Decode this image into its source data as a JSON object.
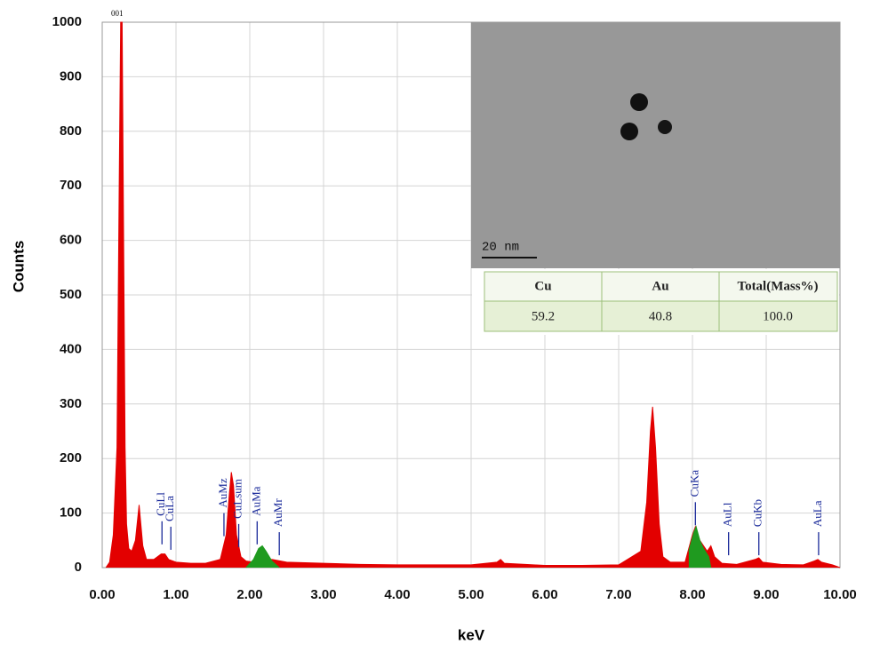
{
  "chart_data": {
    "type": "area",
    "y_label": "Counts",
    "x_label": "keV",
    "annotation": "001",
    "xlim": [
      0,
      10
    ],
    "ylim": [
      0,
      1000
    ],
    "xticks": [
      {
        "value": 0,
        "label": "0.00"
      },
      {
        "value": 1,
        "label": "1.00"
      },
      {
        "value": 2,
        "label": "2.00"
      },
      {
        "value": 3,
        "label": "3.00"
      },
      {
        "value": 4,
        "label": "4.00"
      },
      {
        "value": 5,
        "label": "5.00"
      },
      {
        "value": 6,
        "label": "6.00"
      },
      {
        "value": 7,
        "label": "7.00"
      },
      {
        "value": 8,
        "label": "8.00"
      },
      {
        "value": 9,
        "label": "9.00"
      },
      {
        "value": 10,
        "label": "10.00"
      }
    ],
    "yticks": [
      0,
      100,
      200,
      300,
      400,
      500,
      600,
      700,
      800,
      900,
      1000
    ],
    "grid": true,
    "series": [
      {
        "color": "#e30000",
        "x": [
          0.05,
          0.1,
          0.15,
          0.2,
          0.23,
          0.25,
          0.27,
          0.29,
          0.31,
          0.33,
          0.36,
          0.4,
          0.45,
          0.5,
          0.55,
          0.6,
          0.7,
          0.8,
          0.85,
          0.9,
          1.0,
          1.2,
          1.4,
          1.6,
          1.68,
          1.72,
          1.75,
          1.78,
          1.82,
          1.88,
          1.95,
          2.05,
          2.3,
          2.5,
          3.0,
          3.5,
          4.0,
          4.5,
          5.0,
          5.35,
          5.4,
          5.45,
          6.0,
          6.5,
          7.0,
          7.3,
          7.38,
          7.43,
          7.46,
          7.5,
          7.55,
          7.6,
          7.7,
          7.9,
          8.0,
          8.04,
          8.1,
          8.2,
          8.25,
          8.3,
          8.4,
          8.6,
          8.85,
          8.9,
          8.95,
          9.2,
          9.5,
          9.65,
          9.7,
          9.75,
          9.9,
          10.0
        ],
        "values": [
          0,
          10,
          60,
          220,
          700,
          1000,
          1000,
          600,
          220,
          80,
          35,
          30,
          50,
          115,
          40,
          15,
          15,
          25,
          25,
          15,
          10,
          8,
          8,
          15,
          60,
          130,
          175,
          150,
          60,
          20,
          12,
          10,
          15,
          10,
          8,
          6,
          5,
          5,
          5,
          10,
          15,
          8,
          4,
          4,
          5,
          30,
          120,
          250,
          295,
          220,
          80,
          20,
          10,
          10,
          60,
          75,
          50,
          30,
          40,
          20,
          8,
          6,
          15,
          18,
          10,
          6,
          5,
          12,
          15,
          10,
          5,
          0
        ]
      },
      {
        "color": "#1f9a1f",
        "x": [
          1.95,
          2.05,
          2.12,
          2.17,
          2.22,
          2.3,
          2.4,
          7.85,
          7.95,
          8.02,
          8.05,
          8.1,
          8.15,
          8.22,
          8.25
        ],
        "values": [
          0,
          15,
          35,
          40,
          30,
          12,
          0,
          null,
          30,
          65,
          75,
          50,
          35,
          20,
          0
        ]
      }
    ],
    "peaks": [
      {
        "label": "CuLl",
        "x": 0.81,
        "y": 85
      },
      {
        "label": "CuLa",
        "x": 0.93,
        "y": 75
      },
      {
        "label": "AuMz",
        "x": 1.65,
        "y": 100
      },
      {
        "label": "CuLsum",
        "x": 1.85,
        "y": 80
      },
      {
        "label": "AuMa",
        "x": 2.1,
        "y": 85
      },
      {
        "label": "AuMr",
        "x": 2.4,
        "y": 65
      },
      {
        "label": "CuKa",
        "x": 8.04,
        "y": 120
      },
      {
        "label": "AuLl",
        "x": 8.49,
        "y": 65
      },
      {
        "label": "CuKb",
        "x": 8.9,
        "y": 65
      },
      {
        "label": "AuLa",
        "x": 9.71,
        "y": 65
      }
    ],
    "inset": {
      "scale_bar": "20 nm",
      "table": {
        "header": [
          "Cu",
          "Au",
          "Total(Mass%)"
        ],
        "rows": [
          [
            "59.2",
            "40.8",
            "100.0"
          ]
        ]
      }
    }
  }
}
